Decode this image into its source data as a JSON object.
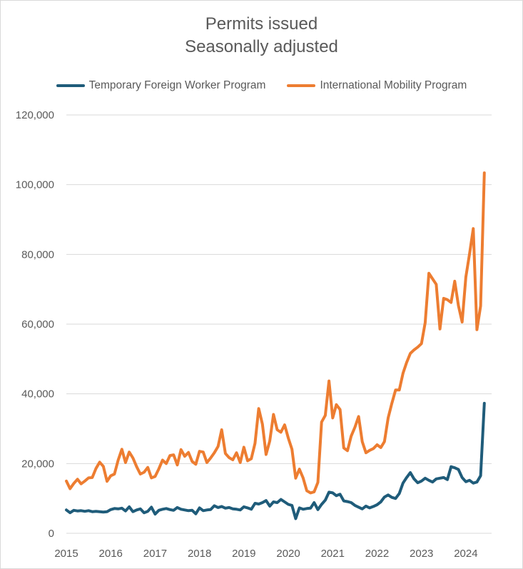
{
  "chart_data": {
    "type": "line",
    "title": "Permits issued",
    "subtitle": "Seasonally adjusted",
    "xlabel": "",
    "ylabel": "",
    "ylim": [
      0,
      120000
    ],
    "yticks": [
      "0",
      "20,000",
      "40,000",
      "60,000",
      "80,000",
      "100,000",
      "120,000"
    ],
    "ytick_values": [
      0,
      20000,
      40000,
      60000,
      80000,
      100000,
      120000
    ],
    "xticks": [
      "2015",
      "2016",
      "2017",
      "2018",
      "2019",
      "2020",
      "2021",
      "2022",
      "2023",
      "2024"
    ],
    "xtick_values": [
      2015,
      2016,
      2017,
      2018,
      2019,
      2020,
      2021,
      2022,
      2023,
      2024
    ],
    "x_unit": "year (monthly series starting Jan 2015)",
    "grid": "horizontal",
    "legend_position": "top",
    "series": [
      {
        "name": "Temporary Foreign Worker Program",
        "color": "#1f5c7a",
        "start": 2015.0,
        "step": 0.08333,
        "values": [
          6700,
          5900,
          6600,
          6400,
          6500,
          6300,
          6500,
          6200,
          6300,
          6200,
          6100,
          6200,
          6800,
          7100,
          7000,
          7200,
          6400,
          7600,
          6200,
          6700,
          7000,
          5900,
          6300,
          7500,
          5500,
          6600,
          6900,
          7100,
          6800,
          6600,
          7400,
          6900,
          6700,
          6500,
          6600,
          5600,
          7300,
          6500,
          6700,
          6800,
          7900,
          7400,
          7700,
          7200,
          7400,
          7000,
          6900,
          6700,
          7600,
          7300,
          6900,
          8600,
          8400,
          8800,
          9400,
          7800,
          9000,
          8800,
          9700,
          9000,
          8300,
          8000,
          4200,
          7300,
          6900,
          7100,
          7200,
          8800,
          6800,
          8300,
          9500,
          11800,
          11600,
          10800,
          11200,
          9300,
          9100,
          8800,
          8000,
          7500,
          7000,
          7800,
          7300,
          7700,
          8200,
          9000,
          10400,
          11000,
          10300,
          10000,
          11400,
          14400,
          16000,
          17400,
          15600,
          14500,
          15000,
          15800,
          15200,
          14700,
          15600,
          15800,
          16000,
          15400,
          19100,
          18800,
          18300,
          16000,
          14800,
          15200,
          14400,
          14700,
          16500,
          37300
        ]
      },
      {
        "name": "International Mobility Program",
        "color": "#ed7d31",
        "start": 2015.0,
        "step": 0.08333,
        "values": [
          15000,
          12800,
          14300,
          15500,
          14200,
          15000,
          15900,
          16000,
          18600,
          20400,
          19200,
          14900,
          16500,
          17000,
          21000,
          24100,
          20300,
          23300,
          21600,
          19100,
          17000,
          17500,
          18900,
          15900,
          16300,
          18500,
          21000,
          20000,
          22300,
          22500,
          19600,
          24000,
          22100,
          23200,
          20600,
          19800,
          23500,
          23300,
          20300,
          21600,
          23100,
          24900,
          29700,
          22900,
          21700,
          21100,
          23100,
          20300,
          24700,
          20800,
          21400,
          25800,
          35800,
          31300,
          22600,
          26500,
          34100,
          29700,
          29000,
          31100,
          27300,
          24100,
          15800,
          18400,
          15900,
          12200,
          11600,
          11900,
          14600,
          31900,
          33800,
          43700,
          33100,
          36900,
          35500,
          24500,
          23700,
          27900,
          30400,
          33500,
          26300,
          23100,
          23800,
          24300,
          25400,
          24600,
          26300,
          33100,
          37300,
          41100,
          41100,
          45900,
          49000,
          51600,
          52600,
          53400,
          54400,
          60400,
          74600,
          73000,
          71400,
          58600,
          67400,
          67000,
          66200,
          72300,
          65300,
          60600,
          73500,
          80200,
          87400,
          58400,
          65200,
          103400
        ]
      }
    ]
  }
}
